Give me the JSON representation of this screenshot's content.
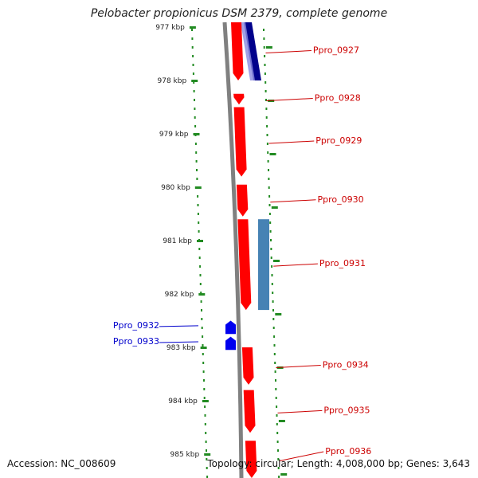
{
  "title": "Pelobacter propionicus DSM 2379, complete genome",
  "accession": "Accession: NC_008609",
  "summary": "Topology: circular; Length: 4,008,000 bp; Genes: 3,643",
  "colors": {
    "forward_gene": "#ff0000",
    "reverse_gene": "#0000ee",
    "dark_blue_gene": "#00008b",
    "steel_gene": "#4682b4",
    "ruler_dots": "#228b22",
    "backbone": "#808080",
    "label_forward": "#cc0000",
    "label_reverse": "#0000cc"
  },
  "chart_data": {
    "type": "diagram",
    "ruler_ticks_kbp": [
      977,
      978,
      979,
      980,
      981,
      982,
      983,
      984,
      985
    ],
    "ruler_tick_labels": [
      "977 kbp",
      "978 kbp",
      "979 kbp",
      "980 kbp",
      "981 kbp",
      "982 kbp",
      "983 kbp",
      "984 kbp",
      "985 kbp"
    ],
    "genes": [
      {
        "name": "Ppro_0927",
        "strand": "+",
        "start_kbp": 976.5,
        "end_kbp": 978.0,
        "label_side": "right"
      },
      {
        "name": "Ppro_0928",
        "strand": "+",
        "start_kbp": 978.25,
        "end_kbp": 978.45,
        "label_side": "right"
      },
      {
        "name": "Ppro_0929",
        "strand": "+",
        "start_kbp": 978.5,
        "end_kbp": 979.8,
        "label_side": "right"
      },
      {
        "name": "Ppro_0930",
        "strand": "+",
        "start_kbp": 979.95,
        "end_kbp": 980.55,
        "label_side": "right"
      },
      {
        "name": "Ppro_0931",
        "strand": "+",
        "start_kbp": 980.6,
        "end_kbp": 982.3,
        "label_side": "right"
      },
      {
        "name": "Ppro_0932",
        "strand": "-",
        "start_kbp": 982.5,
        "end_kbp": 982.75,
        "label_side": "left"
      },
      {
        "name": "Ppro_0933",
        "strand": "-",
        "start_kbp": 982.8,
        "end_kbp": 983.05,
        "label_side": "left"
      },
      {
        "name": "Ppro_0934",
        "strand": "+",
        "start_kbp": 983.0,
        "end_kbp": 983.7,
        "label_side": "right"
      },
      {
        "name": "Ppro_0935",
        "strand": "+",
        "start_kbp": 983.8,
        "end_kbp": 984.6,
        "label_side": "right"
      },
      {
        "name": "Ppro_0936",
        "strand": "+",
        "start_kbp": 984.75,
        "end_kbp": 985.5,
        "label_side": "right"
      }
    ],
    "features": [
      {
        "kind": "steel",
        "start_kbp": 980.6,
        "end_kbp": 982.3
      },
      {
        "kind": "dark_blue",
        "start_kbp": 976.5,
        "end_kbp": 978.0
      }
    ]
  }
}
